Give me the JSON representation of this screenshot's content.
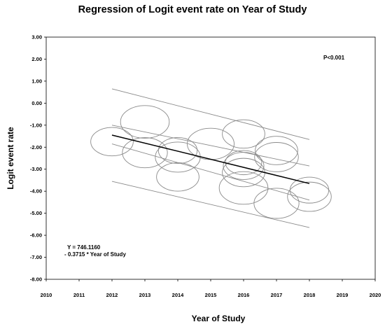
{
  "chart_data": {
    "type": "scatter",
    "title": "Regression of Logit event rate on Year of Study",
    "xlabel": "Year of Study",
    "ylabel": "Logit event rate",
    "xlim": [
      2010,
      2020
    ],
    "ylim": [
      -8,
      3
    ],
    "x_ticks": [
      "2010",
      "2011",
      "2012",
      "2013",
      "2014",
      "2015",
      "2016",
      "2017",
      "2018",
      "2019",
      "2020"
    ],
    "y_ticks": [
      "3.00",
      "2.00",
      "1.00",
      "0.00",
      "-1.00",
      "-2.00",
      "-3.00",
      "-4.00",
      "-5.00",
      "-6.00",
      "-7.00",
      "-8.00"
    ],
    "annotation_p": "P<0.001",
    "equation_line1": "Y = 746.1160",
    "equation_line2": "- 0.3715 * Year of Study",
    "grid": false,
    "points": [
      {
        "x": 2012,
        "y": -1.75,
        "r": 0.68
      },
      {
        "x": 2013,
        "y": -0.85,
        "r": 0.78
      },
      {
        "x": 2013,
        "y": -2.25,
        "r": 0.72
      },
      {
        "x": 2014,
        "y": -2.15,
        "r": 0.62
      },
      {
        "x": 2014,
        "y": -2.45,
        "r": 0.72
      },
      {
        "x": 2014,
        "y": -3.35,
        "r": 0.68
      },
      {
        "x": 2015,
        "y": -1.85,
        "r": 0.75
      },
      {
        "x": 2016,
        "y": -1.4,
        "r": 0.68
      },
      {
        "x": 2016,
        "y": -2.7,
        "r": 0.58
      },
      {
        "x": 2016,
        "y": -2.85,
        "r": 0.65
      },
      {
        "x": 2016,
        "y": -3.15,
        "r": 0.68
      },
      {
        "x": 2016,
        "y": -3.85,
        "r": 0.78
      },
      {
        "x": 2017,
        "y": -2.15,
        "r": 0.68
      },
      {
        "x": 2017,
        "y": -2.45,
        "r": 0.7
      },
      {
        "x": 2017,
        "y": -4.55,
        "r": 0.72
      },
      {
        "x": 2018,
        "y": -3.95,
        "r": 0.62
      },
      {
        "x": 2018,
        "y": -4.25,
        "r": 0.7
      }
    ],
    "regression": {
      "x": [
        2012,
        2018
      ],
      "y": [
        -1.45,
        -3.65
      ]
    },
    "ci_upper": {
      "x": [
        2012,
        2018
      ],
      "y": [
        -1.0,
        -2.85
      ]
    },
    "ci_lower": {
      "x": [
        2012,
        2018
      ],
      "y": [
        -1.85,
        -4.4
      ]
    },
    "pi_upper": {
      "x": [
        2012,
        2018
      ],
      "y": [
        0.65,
        -1.65
      ]
    },
    "pi_lower": {
      "x": [
        2012,
        2018
      ],
      "y": [
        -3.55,
        -5.65
      ]
    },
    "colors": {
      "point_stroke": "#8a8a8a",
      "band": "#8a8a8a",
      "regression": "#000000",
      "axis": "#000000"
    }
  }
}
